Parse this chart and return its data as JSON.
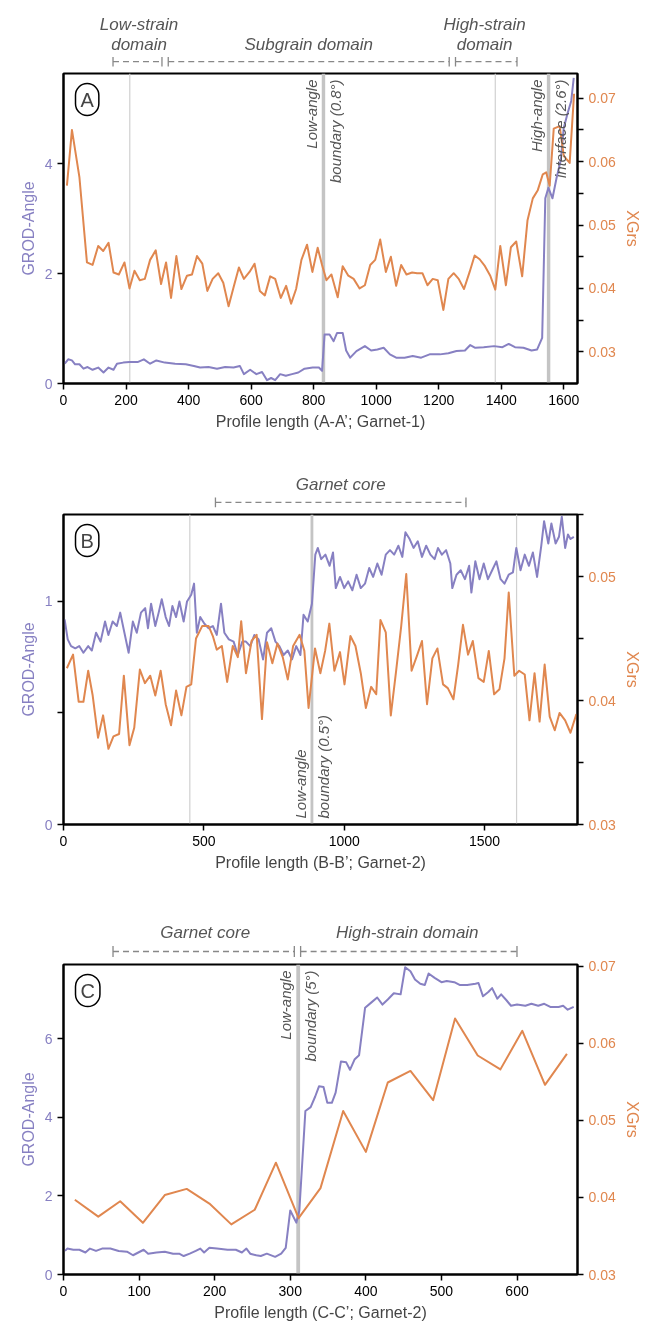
{
  "chart_data": [
    {
      "type": "line",
      "annotations": [
        "A",
        "Low-strain domain",
        "Subgrain domain",
        "High-strain domain"
      ],
      "xlabel": "Profile length (A-A’; Garnet-1)",
      "ylabel": "GROD-Angle",
      "y2label": "XGrs",
      "xlim": [
        0,
        1644
      ],
      "xticks": [
        0,
        200,
        400,
        600,
        800,
        1000,
        1200,
        1400,
        1600
      ],
      "ylim": [
        0,
        5.64
      ],
      "yticks": [
        0,
        2,
        4
      ],
      "y2lim": [
        0.025,
        0.0739
      ],
      "y2ticks": [
        0.03,
        {
          "value": 0.035,
          "label": null
        },
        0.04,
        {
          "value": 0.045,
          "label": null
        },
        0.05,
        {
          "value": 0.055,
          "label": null
        },
        0.06,
        {
          "value": 0.065,
          "label": null
        },
        0.07
      ],
      "ref_lines": [
        {
          "axis": "x",
          "value": 212,
          "color": "#d0d0d0"
        },
        {
          "axis": "x",
          "value": 1381,
          "color": "#d0d0d0"
        }
      ],
      "bands": [
        {
          "axis": "x",
          "from": 826,
          "to": 837,
          "label": "Low-angle boundary (0.8°)",
          "color": "#c4c4c4"
        },
        {
          "axis": "x",
          "from": 1546,
          "to": 1557,
          "label": "High-angle interface (2.6°)",
          "color": "#c4c4c4"
        }
      ],
      "series": [
        {
          "color": "#8780c2",
          "x": [
            4,
            15,
            27,
            37,
            51,
            64,
            77,
            93,
            111,
            128,
            144,
            160,
            171,
            191,
            211,
            237,
            257,
            277,
            297,
            324,
            357,
            391,
            417,
            437,
            464,
            491,
            517,
            544,
            564,
            577,
            597,
            617,
            635,
            651,
            664,
            677,
            693,
            711,
            731,
            751,
            771,
            797,
            817,
            827,
            835,
            851,
            864,
            875,
            893,
            904,
            917,
            937,
            964,
            984,
            1004,
            1024,
            1044,
            1064,
            1091,
            1117,
            1144,
            1171,
            1204,
            1231,
            1257,
            1284,
            1301,
            1317,
            1344,
            1377,
            1404,
            1424,
            1444,
            1471,
            1497,
            1515,
            1531,
            1541,
            1551,
            1564,
            1577,
            1591,
            1600,
            1613,
            1624,
            1632
          ],
          "values": [
            0.36,
            0.44,
            0.42,
            0.35,
            0.35,
            0.27,
            0.3,
            0.25,
            0.29,
            0.2,
            0.29,
            0.25,
            0.36,
            0.38,
            0.39,
            0.39,
            0.44,
            0.36,
            0.42,
            0.38,
            0.36,
            0.35,
            0.32,
            0.29,
            0.3,
            0.27,
            0.3,
            0.29,
            0.32,
            0.17,
            0.25,
            0.17,
            0.21,
            0.06,
            0.1,
            0.06,
            0.17,
            0.14,
            0.17,
            0.2,
            0.27,
            0.29,
            0.29,
            0.23,
            0.89,
            0.89,
            0.77,
            0.92,
            0.92,
            0.6,
            0.47,
            0.59,
            0.68,
            0.6,
            0.62,
            0.65,
            0.53,
            0.47,
            0.47,
            0.5,
            0.47,
            0.53,
            0.53,
            0.55,
            0.59,
            0.6,
            0.7,
            0.65,
            0.66,
            0.68,
            0.66,
            0.72,
            0.66,
            0.65,
            0.6,
            0.62,
            0.83,
            3.37,
            3.56,
            3.37,
            3.74,
            4.08,
            4.65,
            4.93,
            5.14,
            5.56
          ]
        },
        {
          "color": "#e0874f",
          "axis": "y2",
          "x": [
            11,
            27,
            51,
            75,
            93,
            111,
            127,
            144,
            160,
            177,
            195,
            211,
            227,
            244,
            260,
            277,
            295,
            312,
            328,
            344,
            361,
            377,
            395,
            411,
            427,
            444,
            460,
            477,
            495,
            511,
            528,
            544,
            561,
            577,
            595,
            611,
            628,
            644,
            661,
            677,
            695,
            712,
            728,
            744,
            761,
            779,
            796,
            813,
            827,
            841,
            857,
            877,
            893,
            911,
            928,
            947,
            964,
            981,
            997,
            1013,
            1031,
            1047,
            1064,
            1080,
            1097,
            1115,
            1131,
            1148,
            1164,
            1181,
            1197,
            1215,
            1231,
            1248,
            1264,
            1281,
            1299,
            1315,
            1331,
            1348,
            1365,
            1381,
            1397,
            1415,
            1431,
            1448,
            1467,
            1484,
            1501,
            1517,
            1533,
            1544,
            1555,
            1568,
            1587,
            1600,
            1619,
            1633
          ],
          "values": [
            0.0562,
            0.065,
            0.0575,
            0.0441,
            0.0437,
            0.0467,
            0.0459,
            0.0472,
            0.0425,
            0.0422,
            0.0441,
            0.04,
            0.0428,
            0.0413,
            0.0415,
            0.0445,
            0.046,
            0.0407,
            0.0441,
            0.0385,
            0.0451,
            0.0399,
            0.042,
            0.0422,
            0.0451,
            0.0439,
            0.0396,
            0.0415,
            0.0424,
            0.0409,
            0.0372,
            0.0402,
            0.0433,
            0.0415,
            0.0426,
            0.0439,
            0.0396,
            0.0389,
            0.0419,
            0.0415,
            0.0385,
            0.0404,
            0.0376,
            0.0399,
            0.0445,
            0.0469,
            0.0426,
            0.0464,
            0.0437,
            0.0413,
            0.0422,
            0.0386,
            0.0435,
            0.042,
            0.0415,
            0.04,
            0.0405,
            0.0437,
            0.0445,
            0.0477,
            0.0426,
            0.045,
            0.0404,
            0.0437,
            0.0422,
            0.0425,
            0.0424,
            0.0424,
            0.0405,
            0.0415,
            0.0413,
            0.0366,
            0.0415,
            0.0424,
            0.0415,
            0.0399,
            0.0426,
            0.0452,
            0.0446,
            0.0435,
            0.042,
            0.0398,
            0.0467,
            0.0405,
            0.0465,
            0.0474,
            0.0419,
            0.0507,
            0.0542,
            0.0555,
            0.058,
            0.0583,
            0.0562,
            0.0652,
            0.0656,
            0.0609,
            0.0598,
            0.0707
          ]
        }
      ]
    },
    {
      "type": "line",
      "annotations": [
        "B",
        "Garnet core"
      ],
      "xlabel": "Profile length (B-B’; Garnet-2)",
      "ylabel": "GROD-Angle",
      "y2label": "XGrs",
      "xlim": [
        0,
        1831
      ],
      "xticks": [
        0,
        500,
        1000,
        1500
      ],
      "ylim": [
        0,
        1.39
      ],
      "yticks": [
        0,
        {
          "value": 0.5,
          "label": null
        },
        1
      ],
      "y2lim": [
        0.03,
        0.055
      ],
      "y2ticks": [
        0.03,
        {
          "value": 0.035,
          "label": null
        },
        0.04,
        {
          "value": 0.045,
          "label": null
        },
        0.05,
        {
          "value": 0.055,
          "label": null
        }
      ],
      "ref_lines": [
        {
          "axis": "x",
          "value": 450,
          "color": "#d0d0d0"
        },
        {
          "axis": "x",
          "value": 1614,
          "color": "#d0d0d0"
        }
      ],
      "bands": [
        {
          "axis": "x",
          "from": 880,
          "to": 890,
          "label": "Low-angle boundary (0.5°)",
          "color": "#c4c4c4"
        }
      ],
      "series": [
        {
          "color": "#8780c2",
          "x": [
            4,
            15,
            27,
            42,
            56,
            71,
            88,
            101,
            116,
            132,
            148,
            160,
            175,
            190,
            202,
            217,
            232,
            247,
            261,
            276,
            291,
            301,
            312,
            327,
            339,
            350,
            364,
            376,
            388,
            401,
            413,
            428,
            440,
            455,
            465,
            475,
            487,
            502,
            517,
            532,
            546,
            561,
            573,
            589,
            606,
            621,
            637,
            650,
            665,
            680,
            695,
            711,
            725,
            740,
            755,
            769,
            784,
            799,
            814,
            829,
            844,
            855,
            870,
            885,
            897,
            906,
            918,
            933,
            948,
            960,
            970,
            985,
            1000,
            1014,
            1029,
            1044,
            1059,
            1074,
            1089,
            1103,
            1118,
            1133,
            1148,
            1163,
            1178,
            1193,
            1207,
            1218,
            1233,
            1247,
            1262,
            1277,
            1292,
            1307,
            1322,
            1334,
            1348,
            1363,
            1378,
            1385,
            1400,
            1415,
            1430,
            1445,
            1453,
            1467,
            1482,
            1497,
            1512,
            1527,
            1542,
            1557,
            1571,
            1586,
            1601,
            1613,
            1628,
            1643,
            1658,
            1672,
            1687,
            1702,
            1712,
            1727,
            1738,
            1753,
            1765,
            1775,
            1787,
            1797,
            1806,
            1818
          ],
          "values": [
            0.92,
            0.83,
            0.8,
            0.79,
            0.8,
            0.77,
            0.8,
            0.78,
            0.86,
            0.82,
            0.91,
            0.85,
            0.91,
            0.89,
            0.95,
            0.86,
            0.77,
            0.91,
            0.86,
            0.95,
            0.97,
            0.88,
            0.99,
            0.89,
            0.95,
            1.01,
            0.93,
            0.89,
            0.98,
            0.93,
            1.0,
            0.91,
            1.0,
            1.03,
            1.08,
            0.86,
            0.93,
            0.9,
            0.88,
            0.89,
            0.85,
            0.99,
            0.86,
            0.83,
            0.82,
            0.76,
            0.82,
            0.82,
            0.8,
            0.85,
            0.83,
            0.74,
            0.86,
            0.88,
            0.82,
            0.8,
            0.76,
            0.78,
            0.74,
            0.8,
            0.76,
            0.94,
            0.91,
            0.99,
            1.21,
            1.24,
            1.19,
            1.21,
            1.16,
            1.22,
            1.06,
            1.11,
            1.06,
            1.09,
            1.05,
            1.12,
            1.06,
            1.08,
            1.15,
            1.11,
            1.17,
            1.12,
            1.21,
            1.23,
            1.21,
            1.25,
            1.2,
            1.31,
            1.28,
            1.24,
            1.27,
            1.2,
            1.25,
            1.21,
            1.19,
            1.24,
            1.21,
            1.23,
            1.17,
            1.06,
            1.12,
            1.14,
            1.1,
            1.16,
            1.04,
            1.18,
            1.1,
            1.17,
            1.1,
            1.14,
            1.18,
            1.1,
            1.08,
            1.12,
            1.13,
            1.24,
            1.14,
            1.21,
            1.16,
            1.22,
            1.11,
            1.25,
            1.36,
            1.26,
            1.35,
            1.26,
            1.29,
            1.38,
            1.24,
            1.3,
            1.28,
            1.29
          ]
        },
        {
          "color": "#e0874f",
          "axis": "y2",
          "x": [
            12,
            34,
            54,
            71,
            88,
            104,
            123,
            141,
            160,
            178,
            198,
            215,
            235,
            252,
            272,
            290,
            309,
            327,
            346,
            364,
            383,
            401,
            420,
            438,
            455,
            472,
            494,
            517,
            532,
            546,
            564,
            583,
            603,
            621,
            633,
            650,
            670,
            688,
            707,
            725,
            744,
            762,
            781,
            799,
            818,
            841,
            858,
            873,
            896,
            915,
            932,
            947,
            965,
            985,
            1001,
            1022,
            1040,
            1059,
            1077,
            1096,
            1114,
            1129,
            1148,
            1166,
            1185,
            1203,
            1221,
            1240,
            1259,
            1277,
            1295,
            1314,
            1332,
            1352,
            1369,
            1389,
            1406,
            1423,
            1441,
            1458,
            1478,
            1497,
            1515,
            1534,
            1553,
            1571,
            1586,
            1606,
            1623,
            1643,
            1660,
            1678,
            1696,
            1714,
            1732,
            1750,
            1767,
            1787,
            1806,
            1827
          ],
          "values": [
            0.0426,
            0.0437,
            0.0399,
            0.0399,
            0.0424,
            0.0404,
            0.037,
            0.0388,
            0.0361,
            0.0371,
            0.0373,
            0.042,
            0.0364,
            0.0378,
            0.0425,
            0.0414,
            0.042,
            0.0404,
            0.0424,
            0.0397,
            0.038,
            0.0408,
            0.0388,
            0.0411,
            0.0413,
            0.045,
            0.046,
            0.046,
            0.0452,
            0.0441,
            0.0444,
            0.0415,
            0.0444,
            0.0435,
            0.0464,
            0.0422,
            0.0448,
            0.0453,
            0.0385,
            0.0447,
            0.043,
            0.0446,
            0.0435,
            0.0417,
            0.0444,
            0.0453,
            0.044,
            0.0394,
            0.0442,
            0.0422,
            0.044,
            0.0462,
            0.0424,
            0.0439,
            0.0413,
            0.0452,
            0.0444,
            0.0422,
            0.0394,
            0.0411,
            0.0405,
            0.0465,
            0.0455,
            0.0388,
            0.0424,
            0.046,
            0.0502,
            0.0424,
            0.0436,
            0.0448,
            0.0397,
            0.0434,
            0.0442,
            0.0413,
            0.041,
            0.0401,
            0.0429,
            0.0461,
            0.0437,
            0.0448,
            0.0418,
            0.0415,
            0.044,
            0.0405,
            0.0409,
            0.0434,
            0.0487,
            0.042,
            0.0424,
            0.0421,
            0.0384,
            0.0422,
            0.0383,
            0.0429,
            0.0387,
            0.0376,
            0.039,
            0.0384,
            0.0374,
            0.0389
          ]
        }
      ]
    },
    {
      "type": "line",
      "annotations": [
        "C",
        "Garnet core",
        "High-strain domain"
      ],
      "xlabel": "Profile length (C-C’; Garnet-2)",
      "ylabel": "GROD-Angle",
      "y2label": "XGrs",
      "xlim": [
        0,
        680
      ],
      "xticks": [
        0,
        100,
        200,
        300,
        400,
        500,
        600
      ],
      "ylim": [
        0,
        7.89
      ],
      "yticks": [
        0,
        2,
        4,
        6
      ],
      "y2lim": [
        0.03,
        0.0702
      ],
      "y2ticks": [
        0.03,
        0.04,
        0.05,
        0.06,
        0.07
      ],
      "bands": [
        {
          "axis": "x",
          "from": 308,
          "to": 313,
          "label": "Low-angle boundary (5°)",
          "color": "#c4c4c4"
        }
      ],
      "series": [
        {
          "color": "#8780c2",
          "x": [
            2,
            5,
            13,
            21,
            29,
            35,
            43,
            51,
            62,
            73,
            84,
            92,
            99,
            106,
            112,
            123,
            134,
            145,
            153,
            159,
            167,
            175,
            181,
            186,
            193,
            203,
            217,
            228,
            236,
            242,
            247,
            255,
            261,
            269,
            280,
            288,
            294,
            300,
            308,
            312,
            320,
            327,
            333,
            338,
            344,
            349,
            355,
            360,
            367,
            374,
            379,
            385,
            391,
            399,
            407,
            415,
            422,
            429,
            437,
            446,
            452,
            459,
            465,
            472,
            478,
            483,
            491,
            500,
            507,
            517,
            524,
            534,
            545,
            549,
            555,
            562,
            567,
            574,
            579,
            586,
            592,
            600,
            611,
            619,
            628,
            636,
            644,
            655,
            661,
            667,
            675
          ],
          "values": [
            0.6,
            0.66,
            0.63,
            0.63,
            0.56,
            0.66,
            0.6,
            0.66,
            0.66,
            0.6,
            0.58,
            0.49,
            0.56,
            0.63,
            0.53,
            0.56,
            0.58,
            0.53,
            0.53,
            0.47,
            0.53,
            0.6,
            0.66,
            0.56,
            0.68,
            0.66,
            0.63,
            0.63,
            0.56,
            0.66,
            0.53,
            0.49,
            0.47,
            0.53,
            0.45,
            0.53,
            0.68,
            1.63,
            1.32,
            1.63,
            4.16,
            4.26,
            4.53,
            4.79,
            4.77,
            4.37,
            4.37,
            4.63,
            5.42,
            5.4,
            5.21,
            5.47,
            5.58,
            6.79,
            6.92,
            7.05,
            6.87,
            7.0,
            7.16,
            7.13,
            7.82,
            7.72,
            7.51,
            7.4,
            7.37,
            7.66,
            7.55,
            7.44,
            7.47,
            7.44,
            7.37,
            7.37,
            7.4,
            7.42,
            7.08,
            7.19,
            7.29,
            7.02,
            7.13,
            6.98,
            6.84,
            6.87,
            6.84,
            6.89,
            6.84,
            6.89,
            6.81,
            6.81,
            6.84,
            6.74,
            6.81
          ]
        },
        {
          "color": "#e0874f",
          "axis": "y2",
          "x": [
            15,
            46,
            75,
            105,
            134,
            163,
            193,
            222,
            253,
            281,
            311,
            340,
            370,
            400,
            429,
            459,
            489,
            518,
            548,
            578,
            607,
            637,
            666
          ],
          "values": [
            0.0397,
            0.0375,
            0.0395,
            0.0367,
            0.0403,
            0.0411,
            0.0392,
            0.0365,
            0.0384,
            0.0445,
            0.0373,
            0.0412,
            0.0512,
            0.0459,
            0.0549,
            0.0564,
            0.0526,
            0.0632,
            0.0584,
            0.0566,
            0.0616,
            0.0546,
            0.0586
          ]
        }
      ]
    }
  ]
}
